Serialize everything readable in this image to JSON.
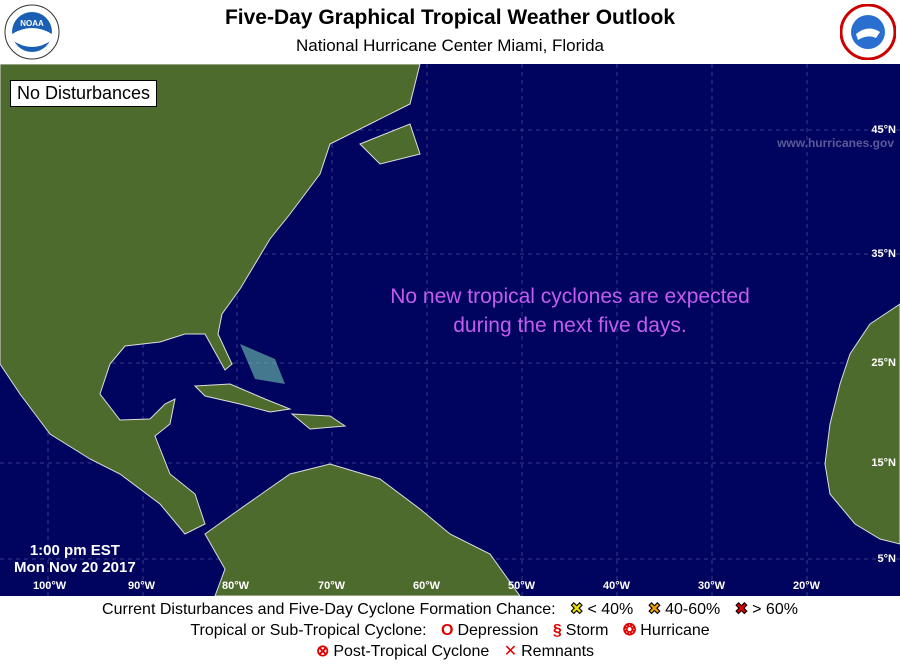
{
  "header": {
    "title": "Five-Day Graphical Tropical Weather Outlook",
    "subtitle": "National Hurricane Center  Miami, Florida",
    "left_logo": "NOAA",
    "right_logo": "NATIONAL WEATHER SERVICE"
  },
  "map": {
    "status_box": "No Disturbances",
    "website": "www.hurricanes.gov",
    "message_line1": "No new tropical cyclones are expected",
    "message_line2": "during the next five days.",
    "time": "1:00 pm EST",
    "date": "Mon Nov 20 2017",
    "longitudes": [
      "100°W",
      "90°W",
      "80°W",
      "70°W",
      "60°W",
      "50°W",
      "40°W",
      "30°W",
      "20°W"
    ],
    "latitudes": [
      "45°N",
      "35°N",
      "25°N",
      "15°N",
      "5°N"
    ],
    "colors": {
      "ocean": "#00045e",
      "message": "#c45cf0",
      "land": "#4e6b2e"
    }
  },
  "legend": {
    "line1_label": "Current Disturbances and Five-Day Cyclone Formation Chance:",
    "chance_low": "< 40%",
    "chance_mid": "40-60%",
    "chance_high": "> 60%",
    "line2_label": "Tropical or Sub-Tropical Cyclone:",
    "depression": "Depression",
    "storm": "Storm",
    "hurricane": "Hurricane",
    "post_tropical": "Post-Tropical Cyclone",
    "remnants": "Remnants",
    "colors": {
      "low": "#f0e000",
      "mid": "#f0a000",
      "high": "#e00000",
      "cyclone": "#e00000"
    }
  }
}
